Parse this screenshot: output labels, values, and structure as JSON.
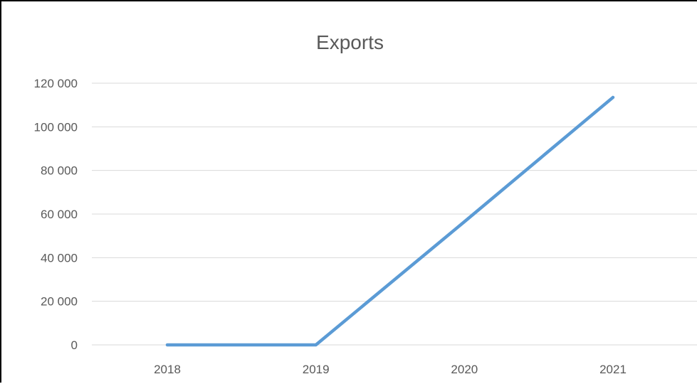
{
  "chart_data": {
    "type": "line",
    "title": "Exports",
    "xlabel": "",
    "ylabel": "",
    "categories": [
      "2018",
      "2019",
      "2020",
      "2021"
    ],
    "series": [
      {
        "values": [
          0,
          0,
          56500,
          113500
        ]
      }
    ],
    "ylim": [
      0,
      120000
    ],
    "yticks": [
      "0",
      "20 000",
      "40 000",
      "60 000",
      "80 000",
      "100 000",
      "120 000"
    ],
    "grid": true,
    "legend": "none",
    "line_color": "#5B9BD5",
    "grid_color": "#D9D9D9",
    "text_color": "#595959"
  }
}
